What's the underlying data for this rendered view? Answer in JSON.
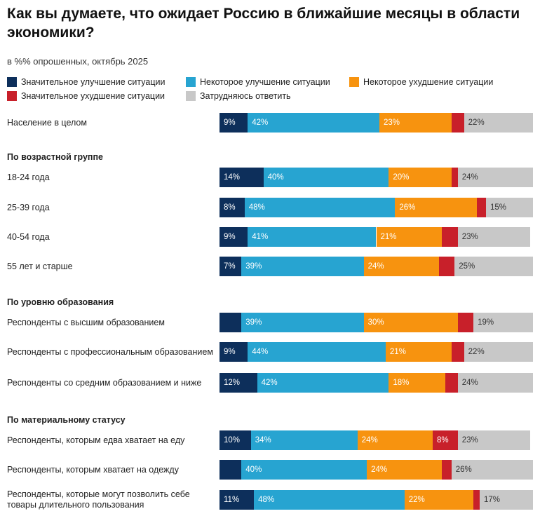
{
  "chart_data": {
    "type": "stacked-bar",
    "title": "Как вы думаете, что ожидает Россию в ближайшие месяцы в области экономики?",
    "subtitle": "в %% опрошенных, октябрь 2025",
    "xlim": [
      0,
      100
    ],
    "series": [
      {
        "name": "Значительное улучшение ситуации",
        "color": "#0d2f5b"
      },
      {
        "name": "Некоторое улучшение ситуации",
        "color": "#27a4d1"
      },
      {
        "name": "Некоторое ухудшение ситуации",
        "color": "#f7930f"
      },
      {
        "name": "Значительное ухудшение ситуации",
        "color": "#c8202a"
      },
      {
        "name": "Затрудняюсь ответить",
        "color": "#c8c8c8"
      }
    ],
    "groups": [
      {
        "title": null,
        "rows": [
          {
            "label": "Население в целом",
            "values": [
              9,
              42,
              23,
              4,
              22
            ],
            "value_labels": [
              "9%",
              "42%",
              "23%",
              null,
              "22%"
            ]
          }
        ]
      },
      {
        "title": "По возрастной группе",
        "rows": [
          {
            "label": "18-24 года",
            "values": [
              14,
              40,
              20,
              2,
              24
            ],
            "value_labels": [
              "14%",
              "40%",
              "20%",
              null,
              "24%"
            ]
          },
          {
            "label": "25-39 года",
            "values": [
              8,
              48,
              26,
              3,
              15
            ],
            "value_labels": [
              "8%",
              "48%",
              "26%",
              null,
              "15%"
            ]
          },
          {
            "label": "40-54 года",
            "values": [
              9,
              41,
              21,
              5,
              23
            ],
            "value_labels": [
              "9%",
              "41%",
              "21%",
              null,
              "23%"
            ]
          },
          {
            "label": "55 лет и старше",
            "values": [
              7,
              39,
              24,
              5,
              25
            ],
            "value_labels": [
              "7%",
              "39%",
              "24%",
              null,
              "25%"
            ]
          }
        ]
      },
      {
        "title": "По уровню образования",
        "rows": [
          {
            "label": "Респонденты с высшим образованием",
            "values": [
              7,
              39,
              30,
              5,
              19
            ],
            "value_labels": [
              null,
              "39%",
              "30%",
              null,
              "19%"
            ]
          },
          {
            "label": "Респонденты с профессиональным образованием",
            "values": [
              9,
              44,
              21,
              4,
              22
            ],
            "value_labels": [
              "9%",
              "44%",
              "21%",
              null,
              "22%"
            ]
          },
          {
            "label": "Респонденты со средним образованием и ниже",
            "values": [
              12,
              42,
              18,
              4,
              24
            ],
            "value_labels": [
              "12%",
              "42%",
              "18%",
              null,
              "24%"
            ]
          }
        ]
      },
      {
        "title": "По материальному статусу",
        "rows": [
          {
            "label": "Респонденты, которым едва хватает на еду",
            "values": [
              10,
              34,
              24,
              8,
              23
            ],
            "value_labels": [
              "10%",
              "34%",
              "24%",
              "8%",
              "23%"
            ]
          },
          {
            "label": "Респонденты, которым хватает на одежду",
            "values": [
              7,
              40,
              24,
              3,
              26
            ],
            "value_labels": [
              null,
              "40%",
              "24%",
              null,
              "26%"
            ]
          },
          {
            "label": "Респонденты, которые могут позволить себе товары длительного пользования",
            "values": [
              11,
              48,
              22,
              2,
              17
            ],
            "value_labels": [
              "11%",
              "48%",
              "22%",
              null,
              "17%"
            ]
          }
        ]
      }
    ]
  }
}
